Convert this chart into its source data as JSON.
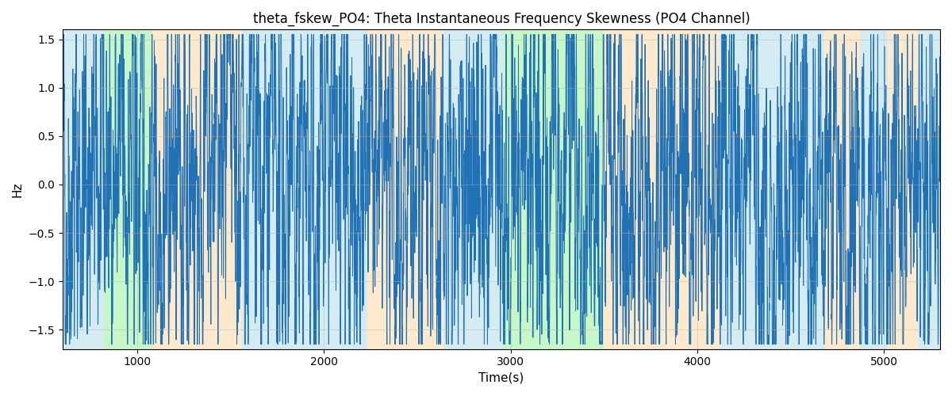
{
  "title": "theta_fskew_PO4: Theta Instantaneous Frequency Skewness (PO4 Channel)",
  "xlabel": "Time(s)",
  "ylabel": "Hz",
  "ylim": [
    -1.7,
    1.6
  ],
  "xlim": [
    600,
    5300
  ],
  "figsize": [
    12.0,
    5.0
  ],
  "dpi": 100,
  "line_color": "#2171b5",
  "line_width": 0.7,
  "bg_bands": [
    {
      "xmin": 600,
      "xmax": 820,
      "color": "#add8e6",
      "alpha": 0.5
    },
    {
      "xmin": 820,
      "xmax": 1080,
      "color": "#90ee90",
      "alpha": 0.5
    },
    {
      "xmin": 1080,
      "xmax": 1560,
      "color": "#ffd59b",
      "alpha": 0.5
    },
    {
      "xmin": 1560,
      "xmax": 1780,
      "color": "#add8e6",
      "alpha": 0.5
    },
    {
      "xmin": 1780,
      "xmax": 1900,
      "color": "#add8e6",
      "alpha": 0.5
    },
    {
      "xmin": 1900,
      "xmax": 2230,
      "color": "#add8e6",
      "alpha": 0.5
    },
    {
      "xmin": 2230,
      "xmax": 2640,
      "color": "#ffd59b",
      "alpha": 0.5
    },
    {
      "xmin": 2640,
      "xmax": 2860,
      "color": "#add8e6",
      "alpha": 0.5
    },
    {
      "xmin": 2860,
      "xmax": 2960,
      "color": "#add8e6",
      "alpha": 0.5
    },
    {
      "xmin": 2960,
      "xmax": 3080,
      "color": "#90ee90",
      "alpha": 0.5
    },
    {
      "xmin": 3080,
      "xmax": 3500,
      "color": "#90ee90",
      "alpha": 0.5
    },
    {
      "xmin": 3500,
      "xmax": 3600,
      "color": "#ffd59b",
      "alpha": 0.5
    },
    {
      "xmin": 3600,
      "xmax": 4120,
      "color": "#ffd59b",
      "alpha": 0.5
    },
    {
      "xmin": 4120,
      "xmax": 4680,
      "color": "#add8e6",
      "alpha": 0.5
    },
    {
      "xmin": 4680,
      "xmax": 4870,
      "color": "#ffd59b",
      "alpha": 0.5
    },
    {
      "xmin": 4870,
      "xmax": 5020,
      "color": "#add8e6",
      "alpha": 0.5
    },
    {
      "xmin": 5020,
      "xmax": 5180,
      "color": "#ffd59b",
      "alpha": 0.5
    },
    {
      "xmin": 5180,
      "xmax": 5300,
      "color": "#add8e6",
      "alpha": 0.5
    }
  ],
  "grid_color": "#b0b0b0",
  "grid_alpha": 0.6,
  "grid_linewidth": 0.5,
  "title_fontsize": 12,
  "tick_fontsize": 10,
  "label_fontsize": 11,
  "seed": 42,
  "n_points": 4700,
  "t_start": 600,
  "t_end": 5300
}
